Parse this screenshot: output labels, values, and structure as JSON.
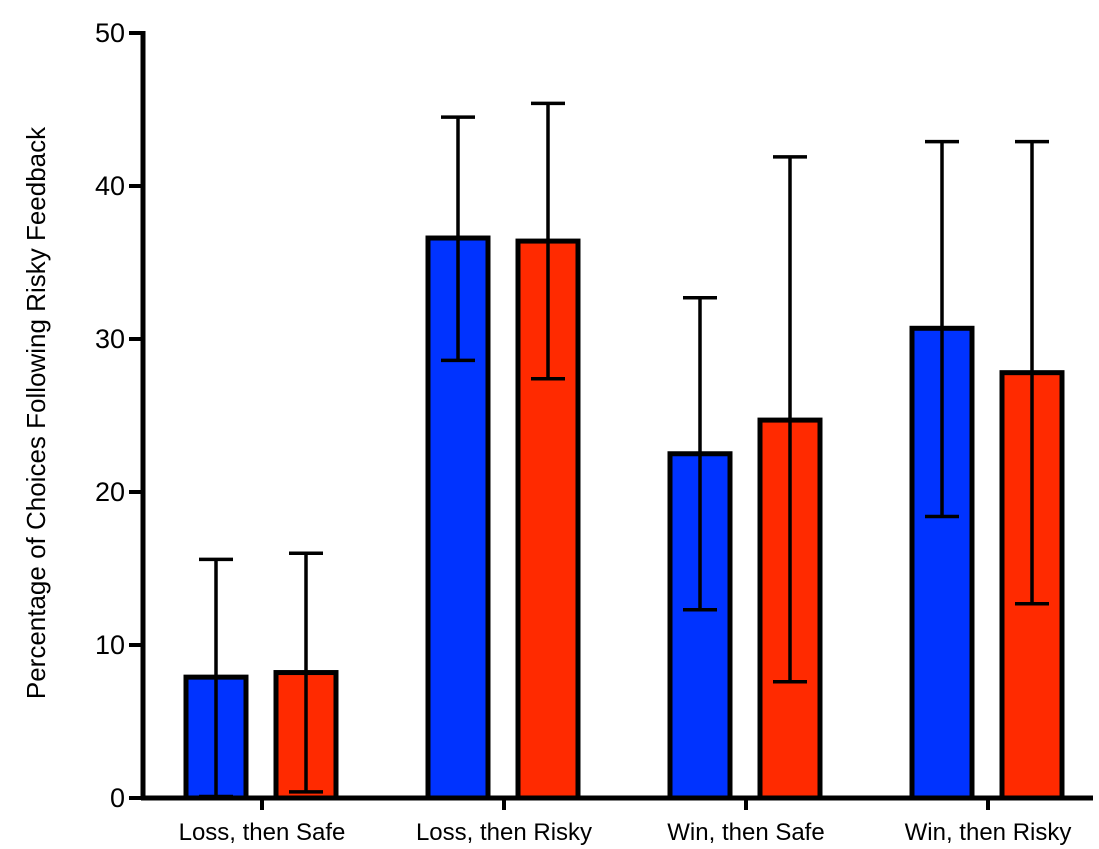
{
  "chart_data": {
    "type": "bar",
    "title": "",
    "xlabel": "",
    "ylabel": "Percentage of Choices Following Risky Feedback",
    "ylim": [
      0,
      50
    ],
    "yticks": [
      0,
      10,
      20,
      30,
      40,
      50
    ],
    "categories": [
      "Loss, then Safe",
      "Loss, then Risky",
      "Win, then Safe",
      "Win, then Risky"
    ],
    "series": [
      {
        "color": "#0033ff",
        "values": [
          7.9,
          36.6,
          22.5,
          30.7
        ],
        "err_low": [
          0.1,
          28.6,
          12.3,
          18.4
        ],
        "err_high": [
          15.6,
          44.5,
          32.7,
          42.9
        ]
      },
      {
        "color": "#ff2a00",
        "values": [
          8.2,
          36.4,
          24.7,
          27.8
        ],
        "err_low": [
          0.4,
          27.4,
          7.6,
          12.7
        ],
        "err_high": [
          16.0,
          45.4,
          41.9,
          42.9
        ]
      }
    ],
    "grid": false,
    "legend": "none"
  }
}
